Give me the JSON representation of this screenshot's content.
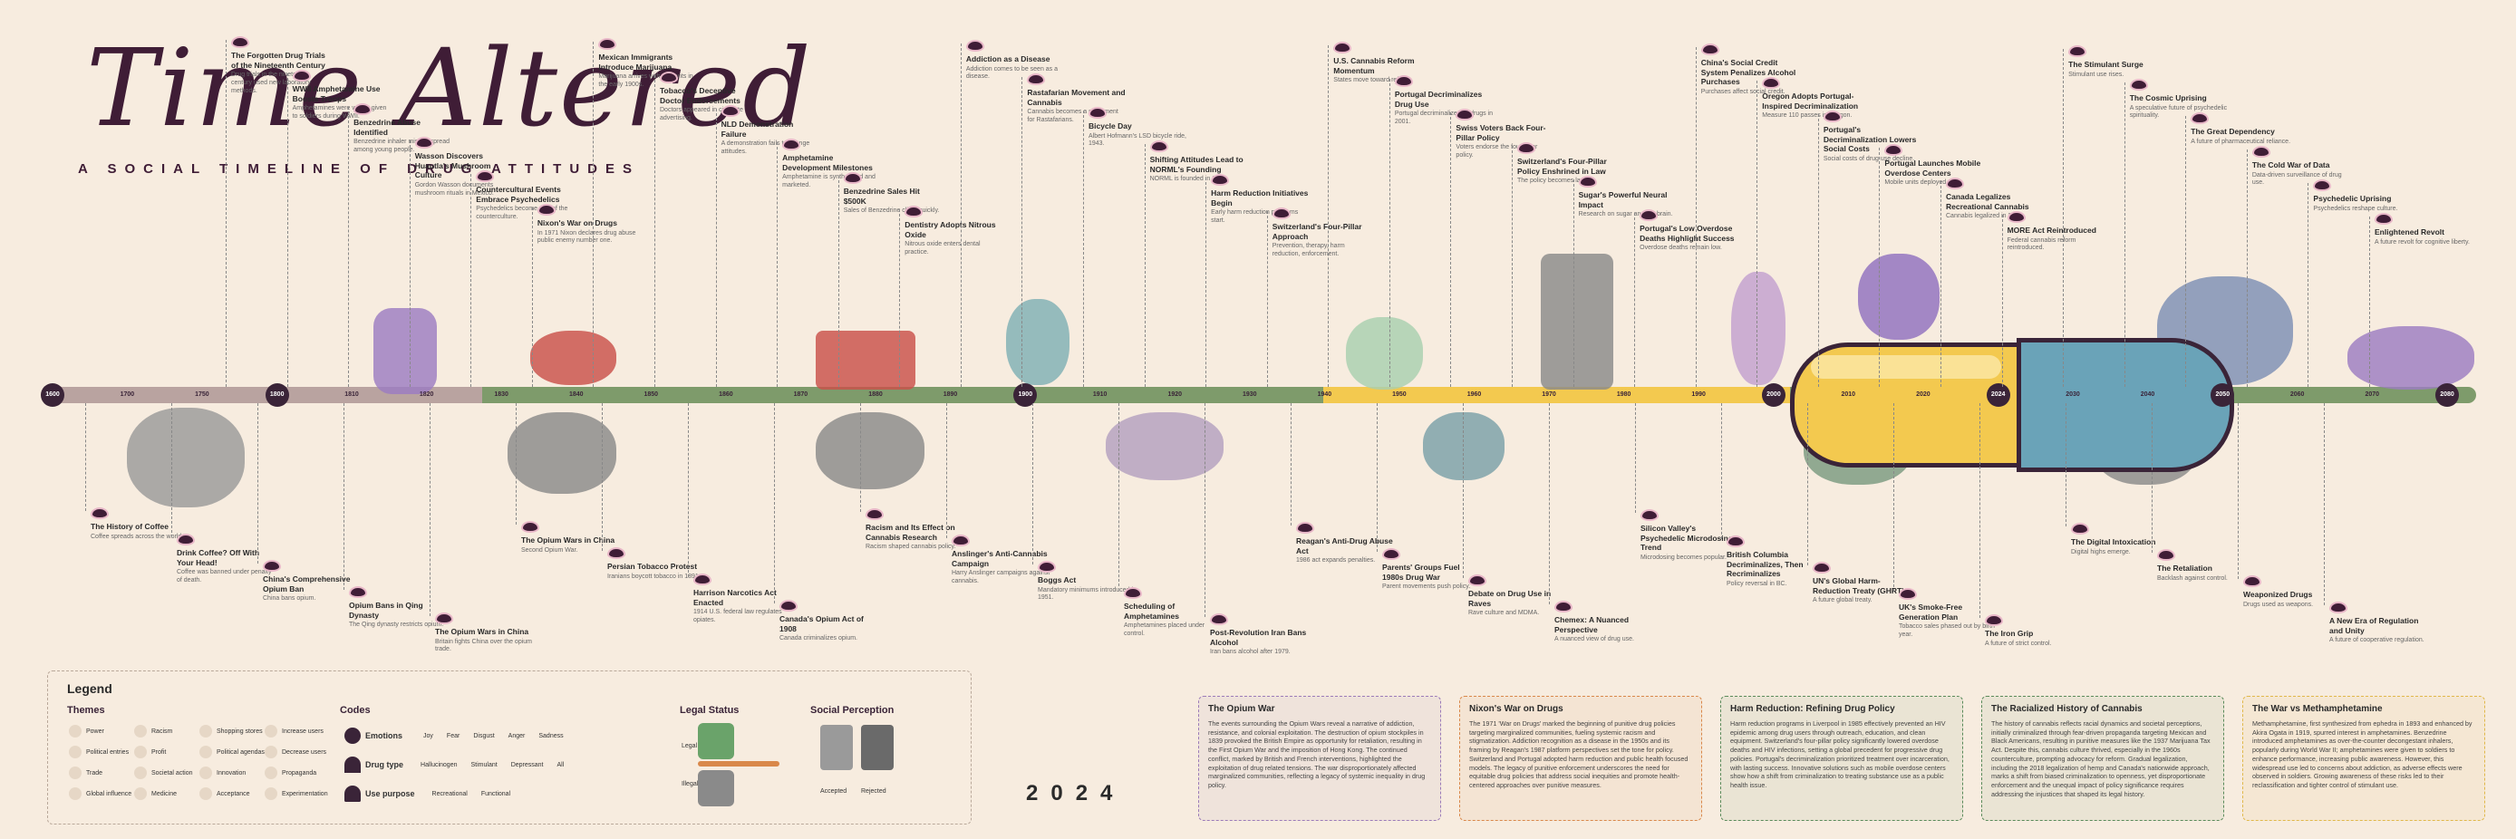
{
  "header": {
    "title": "Time Altered",
    "subtitle": "A SOCIAL TIMELINE OF DRUG ATTITUDES"
  },
  "timeline": {
    "years": [
      "1600",
      "1700",
      "1750",
      "1800",
      "1810",
      "1820",
      "1830",
      "1840",
      "1850",
      "1860",
      "1870",
      "1880",
      "1890",
      "1900",
      "1910",
      "1920",
      "1930",
      "1940",
      "1950",
      "1960",
      "1970",
      "1980",
      "1990",
      "2000",
      "2010",
      "2020",
      "2024",
      "2030",
      "2040",
      "2050",
      "2060",
      "2070",
      "2080"
    ]
  },
  "events_top": [
    {
      "title": "The Forgotten Drug Trials of the Nineteenth Century",
      "body": "Drug trials in the nineteenth century used new laboratory methods."
    },
    {
      "title": "WWII Amphetamine Use Boosts Troops",
      "body": "Amphetamines were widely given to soldiers during WWII."
    },
    {
      "title": "Benzedrine Abuse Identified",
      "body": "Benzedrine inhaler misuse spread among young people."
    },
    {
      "title": "Wasson Discovers Huautla's Mushroom Culture",
      "body": "Gordon Wasson documents mushroom rituals in Mexico."
    },
    {
      "title": "Countercultural Events Embrace Psychedelics",
      "body": "Psychedelics become part of the counterculture."
    },
    {
      "title": "Nixon's War on Drugs",
      "body": "In 1971 Nixon declares drug abuse public enemy number one."
    },
    {
      "title": "Mexican Immigrants Introduce Marijuana",
      "body": "Marijuana arrives with migrants in the early 1900s."
    },
    {
      "title": "Tobacco's Deceptive Doctor Endorsements",
      "body": "Doctors appeared in cigarette advertising."
    },
    {
      "title": "NLD Demonstration Failure",
      "body": "A demonstration fails to change attitudes."
    },
    {
      "title": "Amphetamine Development Milestones",
      "body": "Amphetamine is synthesized and marketed."
    },
    {
      "title": "Benzedrine Sales Hit $500K",
      "body": "Sales of Benzedrine climb quickly."
    },
    {
      "title": "Dentistry Adopts Nitrous Oxide",
      "body": "Nitrous oxide enters dental practice."
    },
    {
      "title": "Addiction as a Disease",
      "body": "Addiction comes to be seen as a disease."
    },
    {
      "title": "Rastafarian Movement and Cannabis",
      "body": "Cannabis becomes a sacrament for Rastafarians."
    },
    {
      "title": "Bicycle Day",
      "body": "Albert Hofmann's LSD bicycle ride, 1943."
    },
    {
      "title": "Shifting Attitudes Lead to NORML's Founding",
      "body": "NORML is founded in 1970."
    },
    {
      "title": "Harm Reduction Initiatives Begin",
      "body": "Early harm reduction programs start."
    },
    {
      "title": "Switzerland's Four-Pillar Approach",
      "body": "Prevention, therapy, harm reduction, enforcement."
    },
    {
      "title": "U.S. Cannabis Reform Momentum",
      "body": "States move toward reform."
    },
    {
      "title": "Portugal Decriminalizes Drug Use",
      "body": "Portugal decriminalizes all drugs in 2001."
    },
    {
      "title": "Swiss Voters Back Four-Pillar Policy",
      "body": "Voters endorse the four-pillar policy."
    },
    {
      "title": "Switzerland's Four-Pillar Policy Enshrined in Law",
      "body": "The policy becomes law."
    },
    {
      "title": "Sugar's Powerful Neural Impact",
      "body": "Research on sugar and the brain."
    },
    {
      "title": "Portugal's Low Overdose Deaths Highlight Success",
      "body": "Overdose deaths remain low."
    },
    {
      "title": "China's Social Credit System Penalizes Alcohol Purchases",
      "body": "Purchases affect social credit."
    },
    {
      "title": "Oregon Adopts Portugal-Inspired Decriminalization",
      "body": "Measure 110 passes in Oregon."
    },
    {
      "title": "Portugal's Decriminalization Lowers Social Costs",
      "body": "Social costs of drug use decline."
    },
    {
      "title": "Portugal Launches Mobile Overdose Centers",
      "body": "Mobile units deployed."
    },
    {
      "title": "Canada Legalizes Recreational Cannabis",
      "body": "Cannabis legalized in 2018."
    },
    {
      "title": "MORE Act Reintroduced",
      "body": "Federal cannabis reform reintroduced."
    },
    {
      "title": "The Stimulant Surge",
      "body": "Stimulant use rises."
    },
    {
      "title": "The Cosmic Uprising",
      "body": "A speculative future of psychedelic spirituality."
    },
    {
      "title": "The Great Dependency",
      "body": "A future of pharmaceutical reliance."
    },
    {
      "title": "The Cold War of Data",
      "body": "Data-driven surveillance of drug use."
    },
    {
      "title": "Psychedelic Uprising",
      "body": "Psychedelics reshape culture."
    },
    {
      "title": "Enlightened Revolt",
      "body": "A future revolt for cognitive liberty."
    }
  ],
  "events_bottom": [
    {
      "title": "The History of Coffee",
      "body": "Coffee spreads across the world."
    },
    {
      "title": "Drink Coffee? Off With Your Head!",
      "body": "Coffee was banned under penalty of death."
    },
    {
      "title": "China's Comprehensive Opium Ban",
      "body": "China bans opium."
    },
    {
      "title": "Opium Bans in Qing Dynasty",
      "body": "The Qing dynasty restricts opium."
    },
    {
      "title": "The Opium Wars in China",
      "body": "Britain fights China over the opium trade."
    },
    {
      "title": "The Opium Wars in China",
      "body": "Second Opium War."
    },
    {
      "title": "Persian Tobacco Protest",
      "body": "Iranians boycott tobacco in 1891."
    },
    {
      "title": "Harrison Narcotics Act Enacted",
      "body": "1914 U.S. federal law regulates opiates."
    },
    {
      "title": "Canada's Opium Act of 1908",
      "body": "Canada criminalizes opium."
    },
    {
      "title": "Racism and Its Effect on Cannabis Research",
      "body": "Racism shaped cannabis policy."
    },
    {
      "title": "Anslinger's Anti-Cannabis Campaign",
      "body": "Harry Anslinger campaigns against cannabis."
    },
    {
      "title": "Boggs Act",
      "body": "Mandatory minimums introduced in 1951."
    },
    {
      "title": "Scheduling of Amphetamines",
      "body": "Amphetamines placed under control."
    },
    {
      "title": "Post-Revolution Iran Bans Alcohol",
      "body": "Iran bans alcohol after 1979."
    },
    {
      "title": "Reagan's Anti-Drug Abuse Act",
      "body": "1986 act expands penalties."
    },
    {
      "title": "Parents' Groups Fuel 1980s Drug War",
      "body": "Parent movements push policy."
    },
    {
      "title": "Debate on Drug Use in Raves",
      "body": "Rave culture and MDMA."
    },
    {
      "title": "Chemex: A Nuanced Perspective",
      "body": "A nuanced view of drug use."
    },
    {
      "title": "Silicon Valley's Psychedelic Microdosing Trend",
      "body": "Microdosing becomes popular."
    },
    {
      "title": "British Columbia Decriminalizes, Then Recriminalizes",
      "body": "Policy reversal in BC."
    },
    {
      "title": "UN's Global Harm-Reduction Treaty (GHRT)",
      "body": "A future global treaty."
    },
    {
      "title": "UK's Smoke-Free Generation Plan",
      "body": "Tobacco sales phased out by birth year."
    },
    {
      "title": "The Iron Grip",
      "body": "A future of strict control."
    },
    {
      "title": "The Digital Intoxication",
      "body": "Digital highs emerge."
    },
    {
      "title": "The Retaliation",
      "body": "Backlash against control."
    },
    {
      "title": "Weaponized Drugs",
      "body": "Drugs used as weapons."
    },
    {
      "title": "A New Era of Regulation and Unity",
      "body": "A future of cooperative regulation."
    }
  ],
  "legend": {
    "title": "Legend",
    "themes_heading": "Themes",
    "themes": [
      "Power",
      "Racism",
      "Shopping stores",
      "Increase users",
      "Political entries",
      "Profit",
      "Political agendas",
      "Decrease users",
      "Trade",
      "Societal action",
      "Innovation",
      "Propaganda",
      "Global influence",
      "Medicine",
      "Acceptance",
      "Experimentation"
    ],
    "codes_heading": "Codes",
    "emotions_label": "Emotions",
    "emotions": [
      "Joy",
      "Fear",
      "Disgust",
      "Anger",
      "Sadness"
    ],
    "drug_type_label": "Drug type",
    "drug_types": [
      "Hallucinogen",
      "Stimulant",
      "Depressant",
      "All"
    ],
    "use_purpose_label": "Use purpose",
    "use_purposes": [
      "Recreational",
      "Functional"
    ],
    "legal_heading": "Legal Status",
    "legal": [
      "Legal",
      "Illegal"
    ],
    "perception_heading": "Social Perception",
    "perception": [
      "Accepted",
      "Rejected"
    ],
    "year_display": "2024"
  },
  "info_boxes": [
    {
      "title": "The Opium War",
      "text": "The events surrounding the Opium Wars reveal a narrative of addiction, resistance, and colonial exploitation. The destruction of opium stockpiles in 1839 provoked the British Empire as opportunity for retaliation, resulting in the First Opium War and the imposition of Hong Kong. The continued conflict, marked by British and French interventions, highlighted the exploitation of drug related tensions. The war disproportionately affected marginalized communities, reflecting a legacy of systemic inequality in drug policy.",
      "color": "#9b7bb8"
    },
    {
      "title": "Nixon's War on Drugs",
      "text": "The 1971 'War on Drugs' marked the beginning of punitive drug policies targeting marginalized communities, fueling systemic racism and stigmatization. Addiction recognition as a disease in the 1950s and its framing by Reagan's 1987 platform perspectives set the tone for policy. Switzerland and Portugal adopted harm reduction and public health focused models. The legacy of punitive enforcement underscores the need for equitable drug policies that address social inequities and promote health-centered approaches over punitive measures.",
      "color": "#d9884a"
    },
    {
      "title": "Harm Reduction: Refining Drug Policy",
      "text": "Harm reduction programs in Liverpool in 1985 effectively prevented an HIV epidemic among drug users through outreach, education, and clean equipment. Switzerland's four-pillar policy significantly lowered overdose deaths and HIV infections, setting a global precedent for progressive drug policies. Portugal's decriminalization prioritized treatment over incarceration, with lasting success. Innovative solutions such as mobile overdose centers show how a shift from criminalization to treating substance use as a public health issue.",
      "color": "#5a8a5a"
    },
    {
      "title": "The Racialized History of Cannabis",
      "text": "The history of cannabis reflects racial dynamics and societal perceptions, initially criminalized through fear-driven propaganda targeting Mexican and Black Americans, resulting in punitive measures like the 1937 Marijuana Tax Act. Despite this, cannabis culture thrived, especially in the 1960s counterculture, prompting advocacy for reform. Gradual legalization, including the 2018 legalization of hemp and Canada's nationwide approach, marks a shift from biased criminalization to openness, yet disproportionate enforcement and the unequal impact of policy significance requires addressing the injustices that shaped its legal history.",
      "color": "#5a8a5a"
    },
    {
      "title": "The War vs Methamphetamine",
      "text": "Methamphetamine, first synthesized from ephedra in 1893 and enhanced by Akira Ogata in 1919, spurred interest in amphetamines. Benzedrine introduced amphetamines as over-the-counter decongestant inhalers, popularly during World War II; amphetamines were given to soldiers to enhance performance, increasing public awareness. However, this widespread use led to concerns about addiction, as adverse effects were observed in soldiers. Growing awareness of these risks led to their reclassification and tighter control of stimulant use.",
      "color": "#e0b84a"
    }
  ]
}
